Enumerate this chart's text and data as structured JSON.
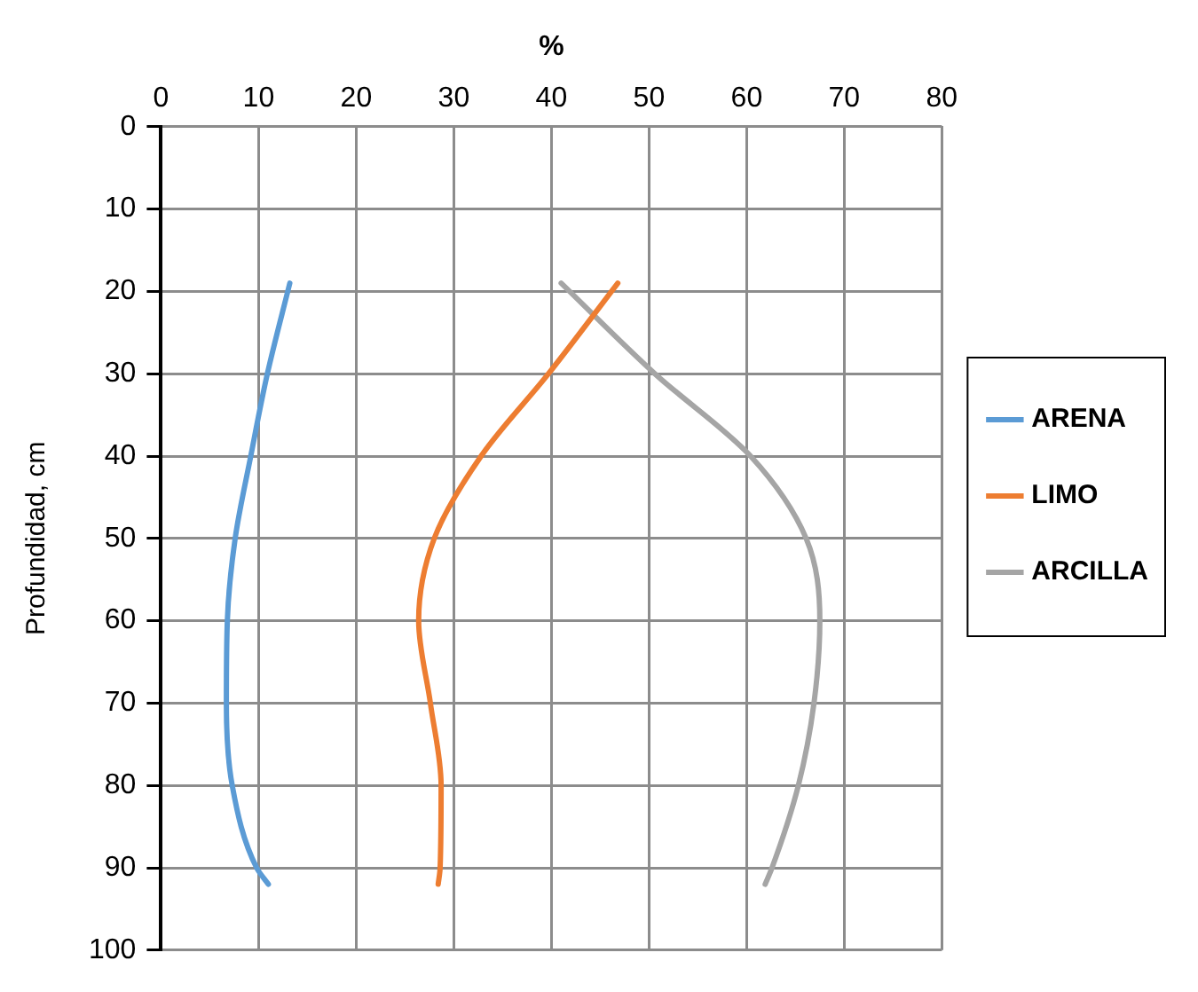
{
  "chart_data": {
    "type": "line",
    "xlabel": "%",
    "ylabel": "Profundidad, cm",
    "xlim": [
      0,
      80
    ],
    "xticks": [
      0,
      10,
      20,
      30,
      40,
      50,
      60,
      70,
      80
    ],
    "ylim": [
      100,
      0
    ],
    "yticks": [
      0,
      10,
      20,
      30,
      40,
      50,
      60,
      70,
      80,
      90,
      100
    ],
    "grid": true,
    "legend": "right",
    "marker": "none",
    "line_style": "solid",
    "series": [
      {
        "name": "ARENA",
        "color": "#5b9bd5",
        "x": [
          13.2,
          10.9,
          9.2,
          7.6,
          6.8,
          6.7,
          7.3,
          9.8,
          11.0
        ],
        "values": [
          19,
          30,
          40,
          50,
          60,
          70,
          80,
          90,
          92
        ]
      },
      {
        "name": "LIMO",
        "color": "#ed7d31",
        "x": [
          46.8,
          39.7,
          32.8,
          28.0,
          26.4,
          27.6,
          28.7,
          28.6,
          28.4
        ],
        "values": [
          19,
          30,
          40,
          50,
          60,
          70,
          80,
          90,
          92
        ]
      },
      {
        "name": "ARCILLA",
        "color": "#a5a5a5",
        "x": [
          41.0,
          50.6,
          60.4,
          66.1,
          67.5,
          66.9,
          65.3,
          62.6,
          61.9
        ],
        "values": [
          19,
          30,
          40,
          50,
          60,
          70,
          80,
          90,
          92
        ]
      }
    ]
  }
}
